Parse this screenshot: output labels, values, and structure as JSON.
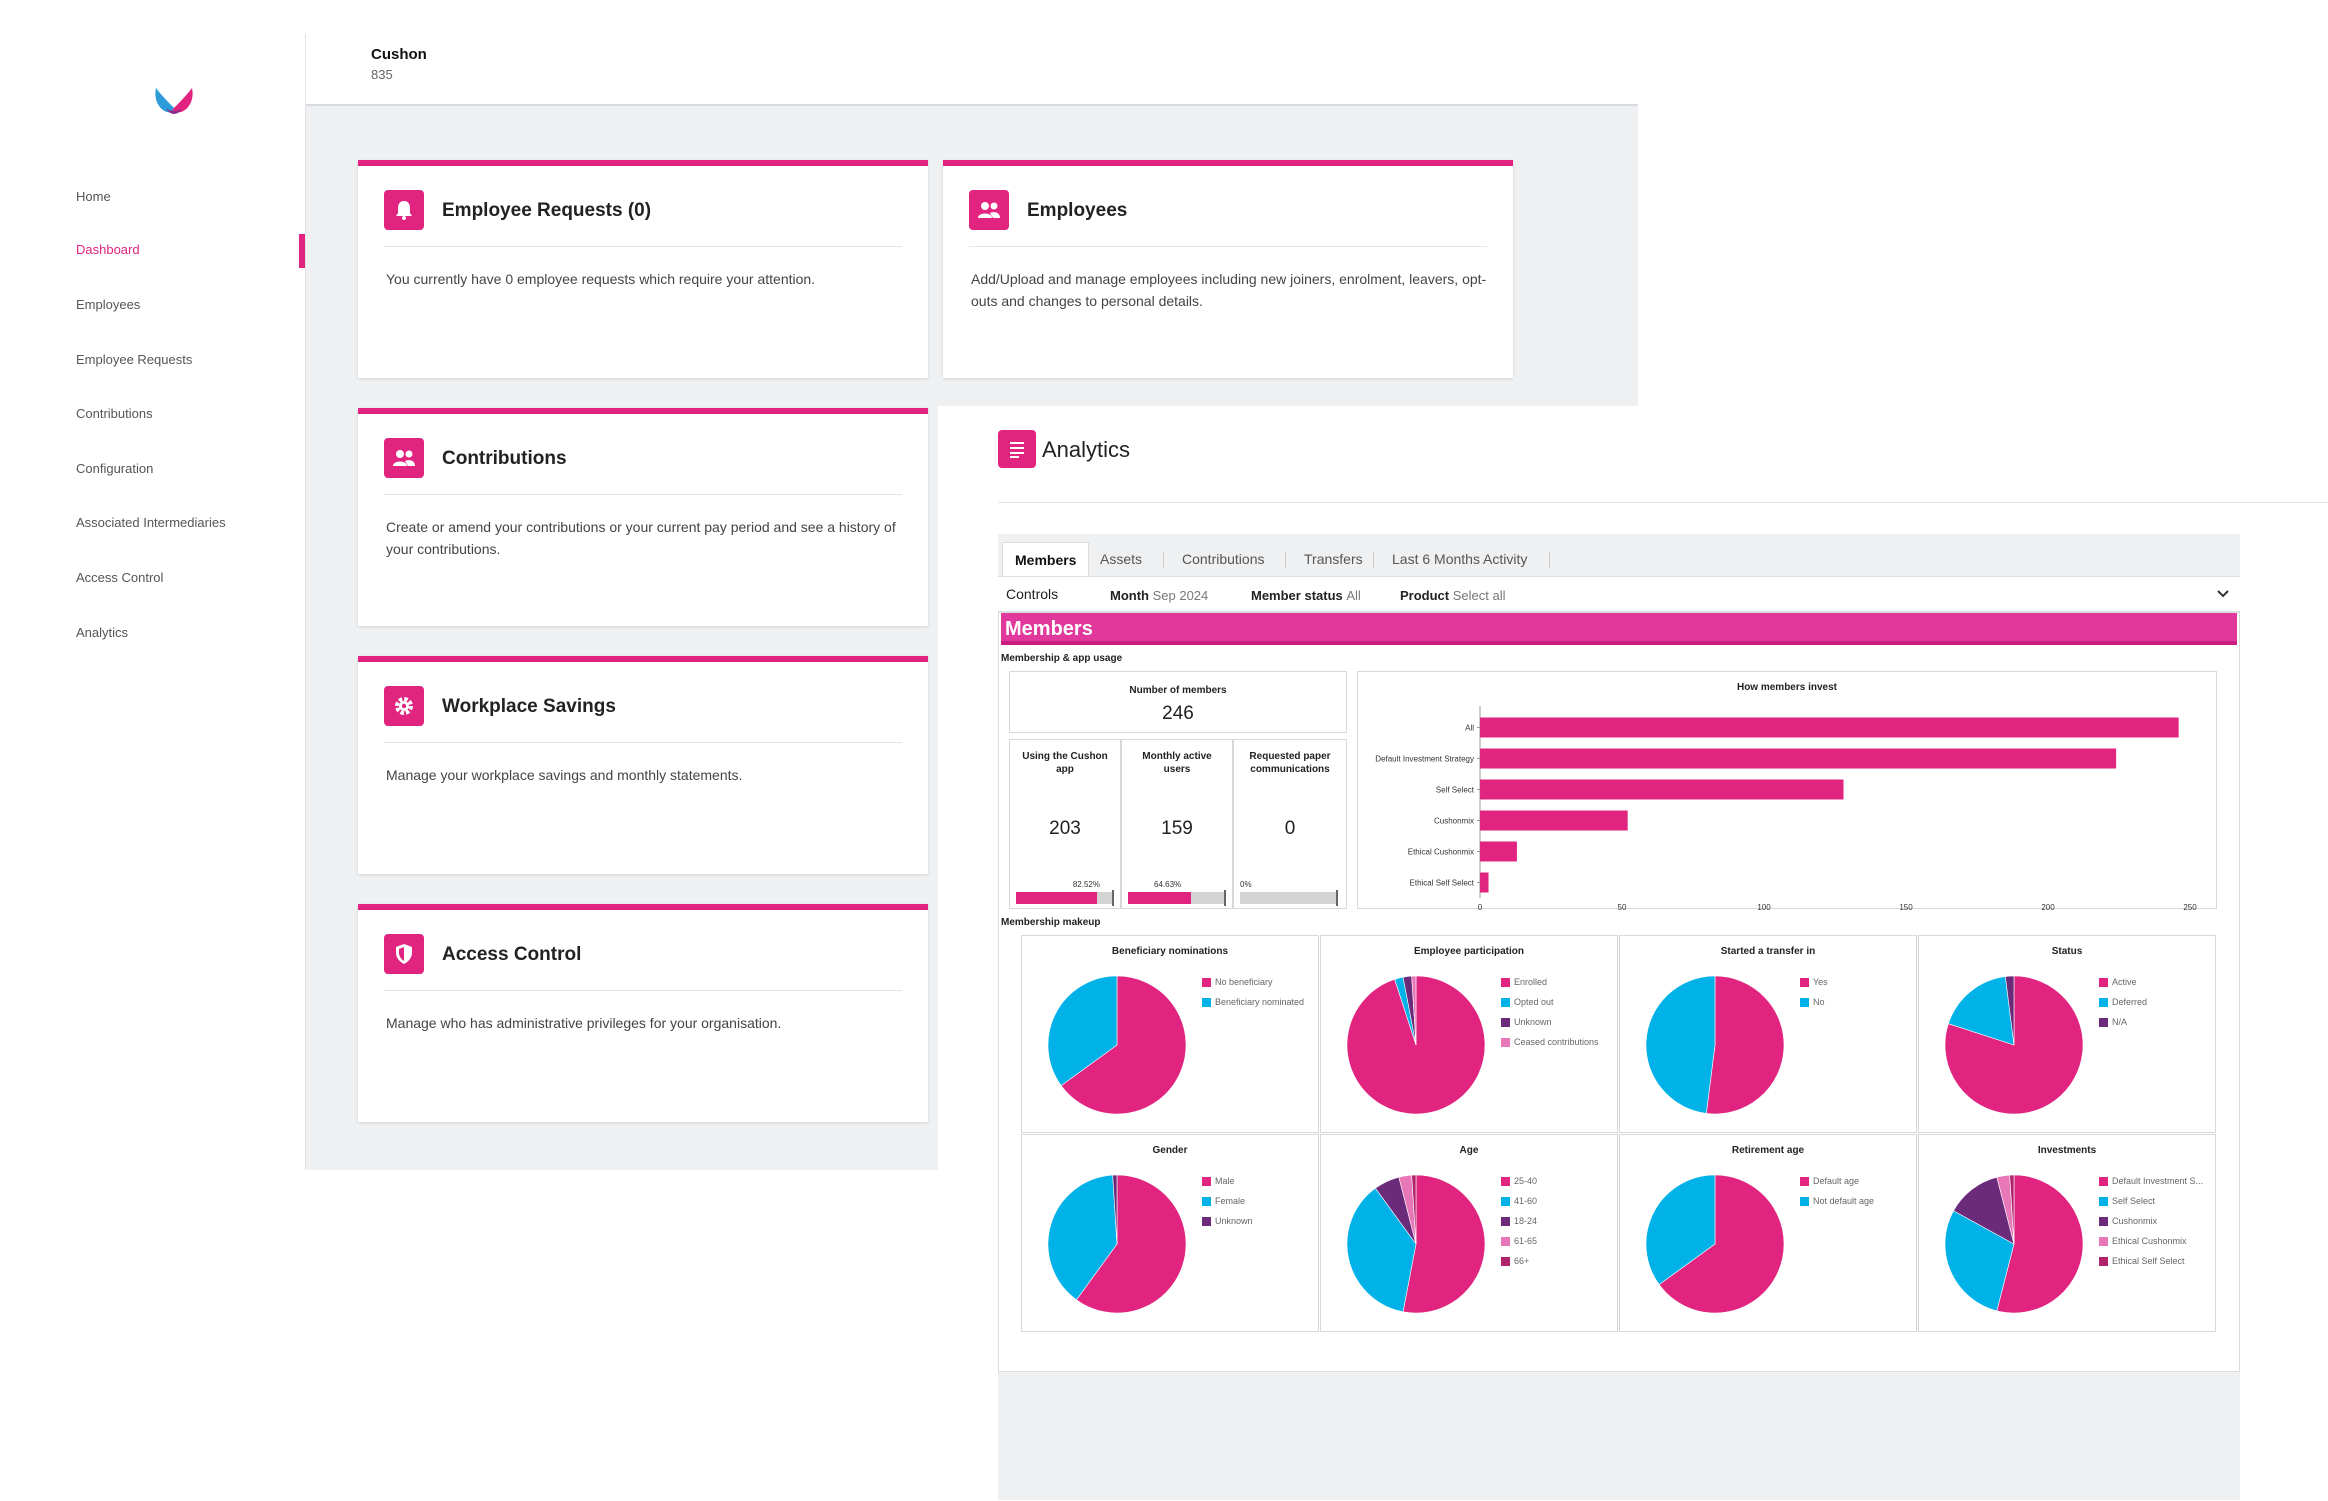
{
  "brand": {
    "primary": "#e0247f",
    "secondary": "#00b2e8",
    "tertiary": "#6b2a7a",
    "light_pink": "#e877b7"
  },
  "header": {
    "org_name": "Cushon",
    "org_id": "835"
  },
  "sidebar": {
    "items": [
      {
        "label": "Home",
        "active": false
      },
      {
        "label": "Dashboard",
        "active": true
      },
      {
        "label": "Employees",
        "active": false
      },
      {
        "label": "Employee Requests",
        "active": false
      },
      {
        "label": "Contributions",
        "active": false
      },
      {
        "label": "Configuration",
        "active": false
      },
      {
        "label": "Associated Intermediaries",
        "active": false
      },
      {
        "label": "Access Control",
        "active": false
      },
      {
        "label": "Analytics",
        "active": false
      }
    ]
  },
  "cards": [
    {
      "icon": "bell-icon",
      "title": "Employee Requests (0)",
      "desc": "You currently have 0 employee requests which require your attention."
    },
    {
      "icon": "people-icon",
      "title": "Employees",
      "desc": "Add/Upload and manage employees including new joiners, enrolment, leavers, opt-outs and changes to personal details."
    },
    {
      "icon": "people-icon",
      "title": "Contributions",
      "desc": "Create or amend your contributions or your current pay period and see a history of your contributions."
    },
    {
      "icon": "gear-icon",
      "title": "Workplace Savings",
      "desc": "Manage your workplace savings and monthly statements."
    },
    {
      "icon": "shield-icon",
      "title": "Access Control",
      "desc": "Manage who has administrative privileges for your organisation."
    }
  ],
  "analytics": {
    "title": "Analytics",
    "tabs": [
      "Members",
      "Assets",
      "Contributions",
      "Transfers",
      "Last 6 Months Activity"
    ],
    "controls": {
      "label": "Controls",
      "month_label": "Month",
      "month_value": "Sep 2024",
      "status_label": "Member status",
      "status_value": "All",
      "product_label": "Product",
      "product_value": "Select all"
    },
    "members_title": "Members",
    "section_usage": "Membership & app usage",
    "section_makeup": "Membership makeup",
    "kpis": {
      "number_of_members": {
        "title": "Number of members",
        "value": "246"
      },
      "using_app": {
        "title": "Using the Cushon app",
        "value": "203",
        "pct": "82.52%",
        "fill": 0.8252
      },
      "monthly_active": {
        "title": "Monthly active users",
        "value": "159",
        "pct": "64.63%",
        "fill": 0.6463
      },
      "paper": {
        "title": "Requested paper communications",
        "value": "0",
        "pct": "0%",
        "fill": 0
      }
    }
  },
  "chart_data": [
    {
      "type": "bar",
      "orientation": "horizontal",
      "title": "How members invest",
      "categories": [
        "All",
        "Default Investment Strategy",
        "Self Select",
        "Cushonmix",
        "Ethical Cushonmix",
        "Ethical Self Select"
      ],
      "values": [
        246,
        224,
        128,
        52,
        13,
        3
      ],
      "xlim": [
        0,
        250
      ],
      "xticks": [
        0,
        50,
        100,
        150,
        200,
        250
      ],
      "color": "#e0247f"
    },
    {
      "type": "pie",
      "title": "Beneficiary nominations",
      "labels": [
        "No beneficiary",
        "Beneficiary nominated"
      ],
      "values": [
        65,
        35
      ],
      "colors": [
        "#e0247f",
        "#00b2e8"
      ]
    },
    {
      "type": "pie",
      "title": "Employee participation",
      "labels": [
        "Enrolled",
        "Opted out",
        "Unknown",
        "Ceased contributions"
      ],
      "values": [
        95,
        2,
        2,
        1
      ],
      "colors": [
        "#e0247f",
        "#00b2e8",
        "#6b2a7a",
        "#e877b7"
      ]
    },
    {
      "type": "pie",
      "title": "Started a transfer in",
      "labels": [
        "Yes",
        "No"
      ],
      "values": [
        52,
        48
      ],
      "colors": [
        "#e0247f",
        "#00b2e8"
      ]
    },
    {
      "type": "pie",
      "title": "Status",
      "labels": [
        "Active",
        "Deferred",
        "N/A"
      ],
      "values": [
        80,
        18,
        2
      ],
      "colors": [
        "#e0247f",
        "#00b2e8",
        "#6b2a7a"
      ]
    },
    {
      "type": "pie",
      "title": "Gender",
      "labels": [
        "Male",
        "Female",
        "Unknown"
      ],
      "values": [
        60,
        39,
        1
      ],
      "colors": [
        "#e0247f",
        "#00b2e8",
        "#6b2a7a"
      ]
    },
    {
      "type": "pie",
      "title": "Age",
      "labels": [
        "25-40",
        "41-60",
        "18-24",
        "61-65",
        "66+"
      ],
      "values": [
        53,
        37,
        6,
        3,
        1
      ],
      "colors": [
        "#e0247f",
        "#00b2e8",
        "#6b2a7a",
        "#e877b7",
        "#b0246c"
      ]
    },
    {
      "type": "pie",
      "title": "Retirement age",
      "labels": [
        "Default age",
        "Not default age"
      ],
      "values": [
        65,
        35
      ],
      "colors": [
        "#e0247f",
        "#00b2e8"
      ]
    },
    {
      "type": "pie",
      "title": "Investments",
      "labels": [
        "Default Investment S...",
        "Self Select",
        "Cushonmix",
        "Ethical Cushonmix",
        "Ethical Self Select"
      ],
      "values": [
        54,
        29,
        13,
        3,
        1
      ],
      "colors": [
        "#e0247f",
        "#00b2e8",
        "#6b2a7a",
        "#e877b7",
        "#b0246c"
      ]
    }
  ]
}
